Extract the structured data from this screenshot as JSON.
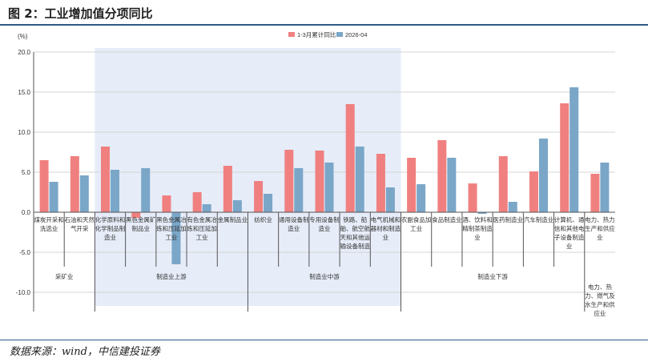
{
  "figure": {
    "title": "图 2：工业增加值分项同比",
    "source": "数据来源：wind，中信建投证券"
  },
  "colors": {
    "series1": "#f08080",
    "series2": "#7aa6c8",
    "shade": "#e6ecf8",
    "rule": "#2e5a85"
  },
  "chart_data": {
    "type": "bar",
    "ylabel": "(%)",
    "ylim": [
      -10,
      20
    ],
    "yticks": [
      "20.0",
      "15.0",
      "10.0",
      "5.0",
      "0.0",
      "-5.0",
      "-10.0"
    ],
    "grid": true,
    "legend_position": "top-center",
    "categories": [
      [
        "煤炭开采和",
        "洗选业"
      ],
      [
        "石油和天然",
        "气开采"
      ],
      [
        "化学原料和",
        "化学制品制",
        "造业"
      ],
      [
        "黑色金属矿",
        "制品业"
      ],
      [
        "黑色金属冶",
        "炼和压延加",
        "工业"
      ],
      [
        "有色金属冶",
        "炼和压延加",
        "工业"
      ],
      [
        "金属制品业"
      ],
      [
        "纺织业"
      ],
      [
        "通用设备制",
        "造业"
      ],
      [
        "专用设备制",
        "造业"
      ],
      [
        "铁路、船",
        "舶、航空航",
        "天和其他运",
        "输设备制造"
      ],
      [
        "电气机械和",
        "器材和制造",
        "业"
      ],
      [
        "农副食品加",
        "工业"
      ],
      [
        "食品制造业"
      ],
      [
        "酒、饮料和",
        "精制茶制造",
        "业"
      ],
      [
        "医药制造业"
      ],
      [
        "汽车制造业"
      ],
      [
        "计算机、通",
        "信和其他电",
        "子设备制造",
        "业"
      ],
      [
        "电力、热力",
        "生产和供应",
        "业"
      ]
    ],
    "series": [
      {
        "name": "1-3月累计同比",
        "values": [
          6.5,
          7.0,
          8.2,
          -0.7,
          2.1,
          2.5,
          5.8,
          3.9,
          7.8,
          7.7,
          13.5,
          7.3,
          6.8,
          9.0,
          3.6,
          7.0,
          5.1,
          13.6,
          4.8
        ]
      },
      {
        "name": "2026-04",
        "values": [
          3.8,
          4.6,
          5.3,
          5.5,
          -6.5,
          1.0,
          1.5,
          2.3,
          5.5,
          6.2,
          8.2,
          3.1,
          3.5,
          6.8,
          -0.2,
          1.3,
          9.2,
          15.6,
          6.2
        ]
      }
    ],
    "groups": [
      {
        "label": "采矿业",
        "start": 0,
        "end": 1
      },
      {
        "label": "制造业上游",
        "start": 2,
        "end": 6
      },
      {
        "label": "制造业中游",
        "start": 7,
        "end": 11
      },
      {
        "label": "制造业下游",
        "start": 12,
        "end": 17
      },
      {
        "label": [
          "电力、热",
          "力、燃气及",
          "水生产和供",
          "应业"
        ],
        "start": 18,
        "end": 18
      }
    ],
    "shaded_groups": [
      1,
      2
    ]
  }
}
